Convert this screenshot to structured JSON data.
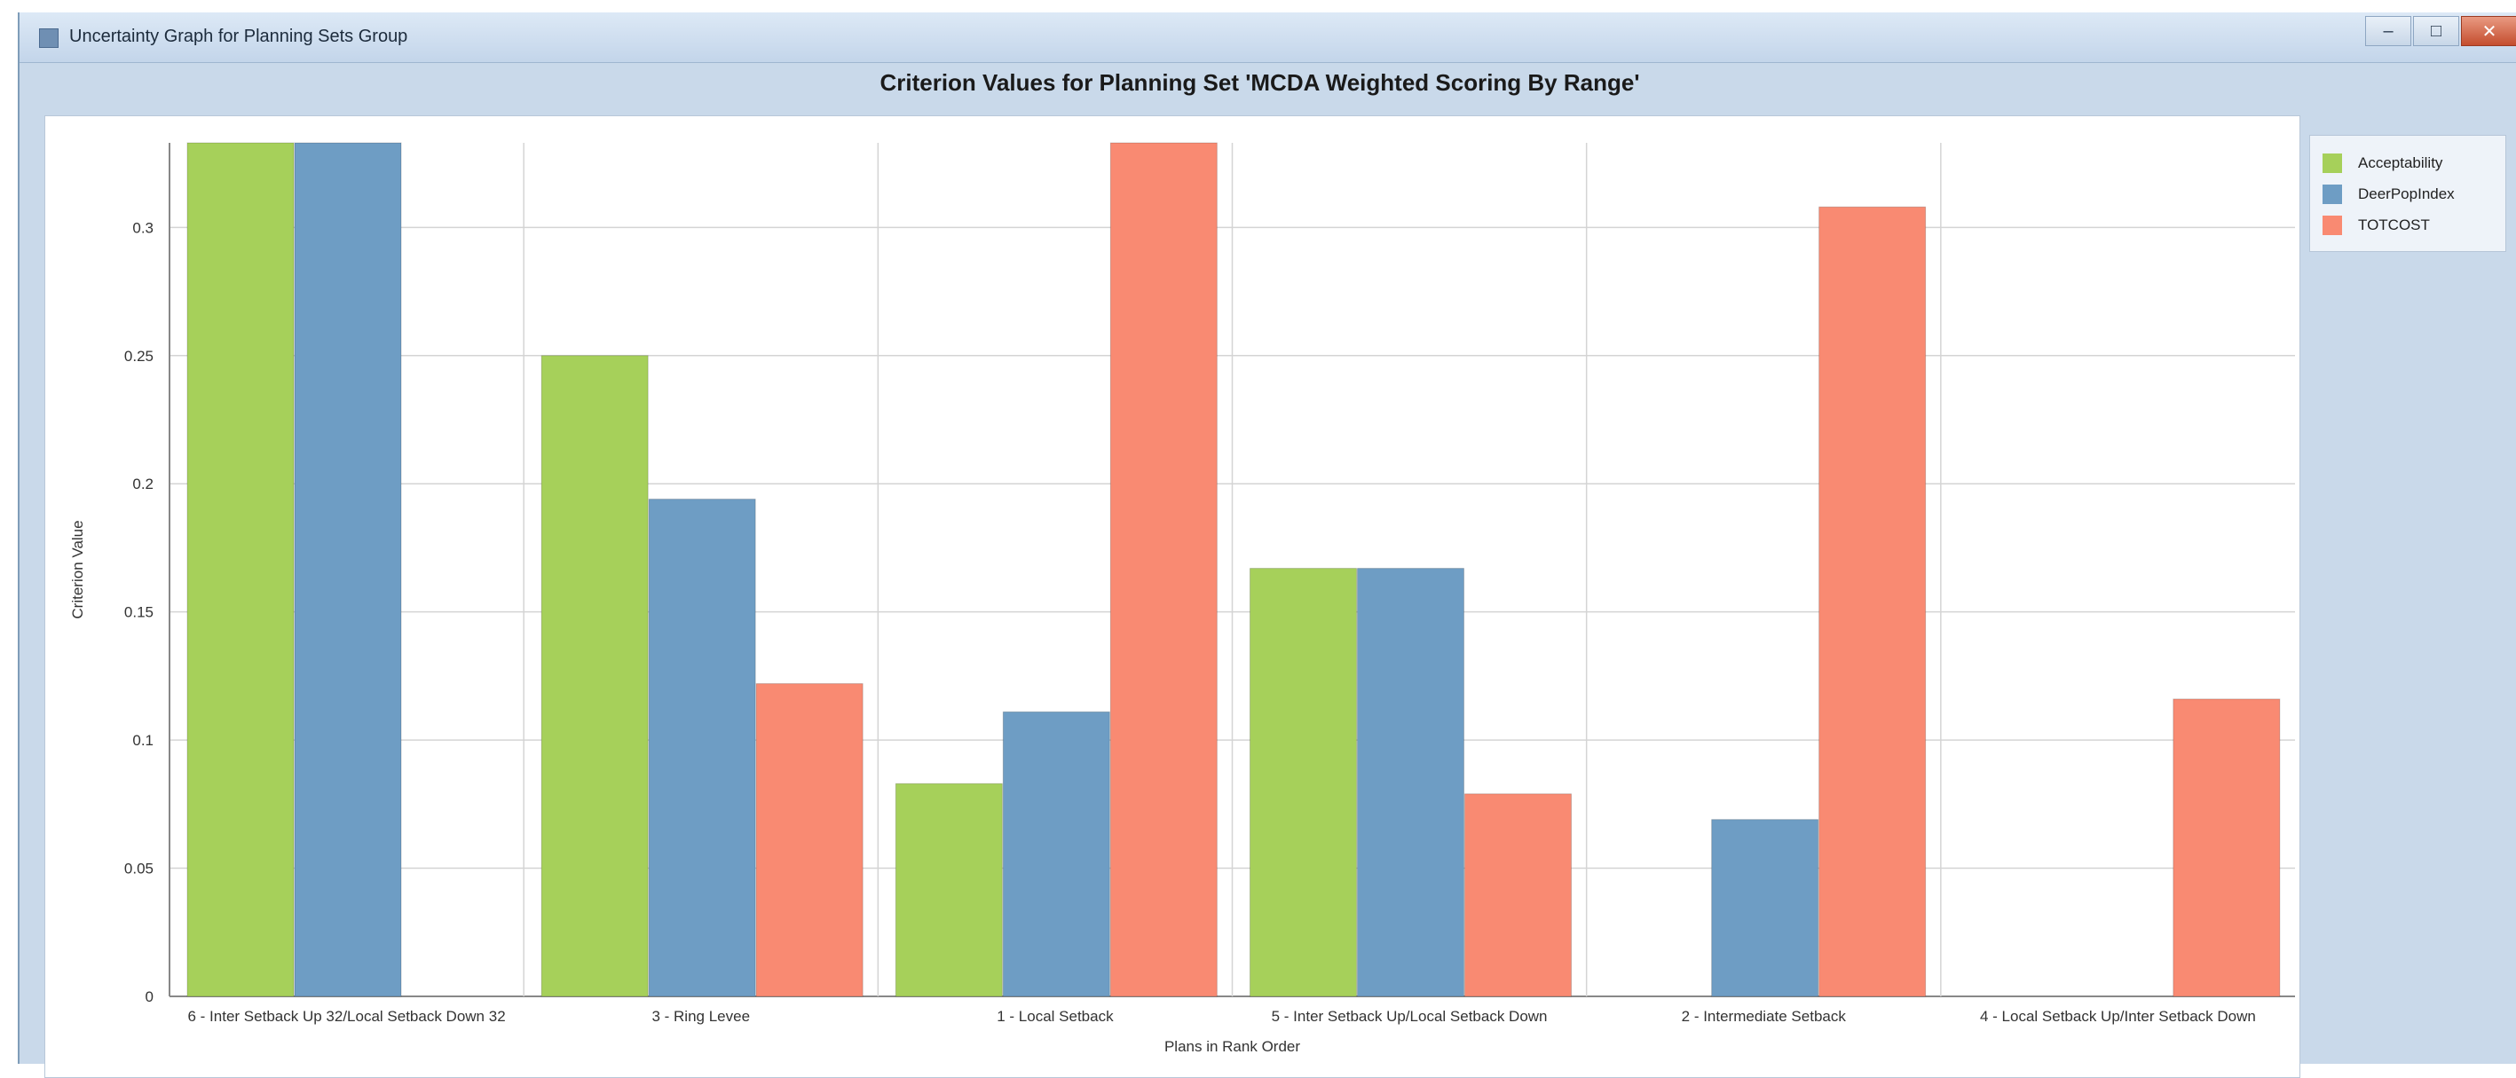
{
  "window": {
    "title": "Uncertainty Graph for Planning Sets Group",
    "controls": {
      "minimize": "–",
      "maximize": "□",
      "close": "✕"
    }
  },
  "icons": {
    "app": "chart-window-icon"
  },
  "colors": {
    "Acceptability": "#a6d05a",
    "DeerPopIndex": "#6e9dc4",
    "TOTCOST": "#f98a72"
  },
  "chart_data": {
    "type": "bar",
    "title": "Criterion Values for Planning Set 'MCDA Weighted Scoring By Range'",
    "xlabel": "Plans in Rank Order",
    "ylabel": "Criterion Value",
    "ylim": [
      0,
      0.333
    ],
    "yticks": [
      "0",
      "0.05",
      "0.1",
      "0.15",
      "0.2",
      "0.25",
      "0.3"
    ],
    "grid": true,
    "legend_position": "right",
    "categories": [
      "6 - Inter Setback Up 32/Local Setback Down 32",
      "3 - Ring Levee",
      "1 - Local Setback",
      "5 - Inter Setback Up/Local Setback Down",
      "2 - Intermediate Setback",
      "4 - Local Setback Up/Inter Setback Down"
    ],
    "series": [
      {
        "name": "Acceptability",
        "values": [
          0.333,
          0.25,
          0.083,
          0.167,
          0,
          0
        ]
      },
      {
        "name": "DeerPopIndex",
        "values": [
          0.333,
          0.194,
          0.111,
          0.167,
          0.069,
          0
        ]
      },
      {
        "name": "TOTCOST",
        "values": [
          0,
          0.122,
          0.333,
          0.079,
          0.308,
          0.116
        ]
      }
    ]
  }
}
